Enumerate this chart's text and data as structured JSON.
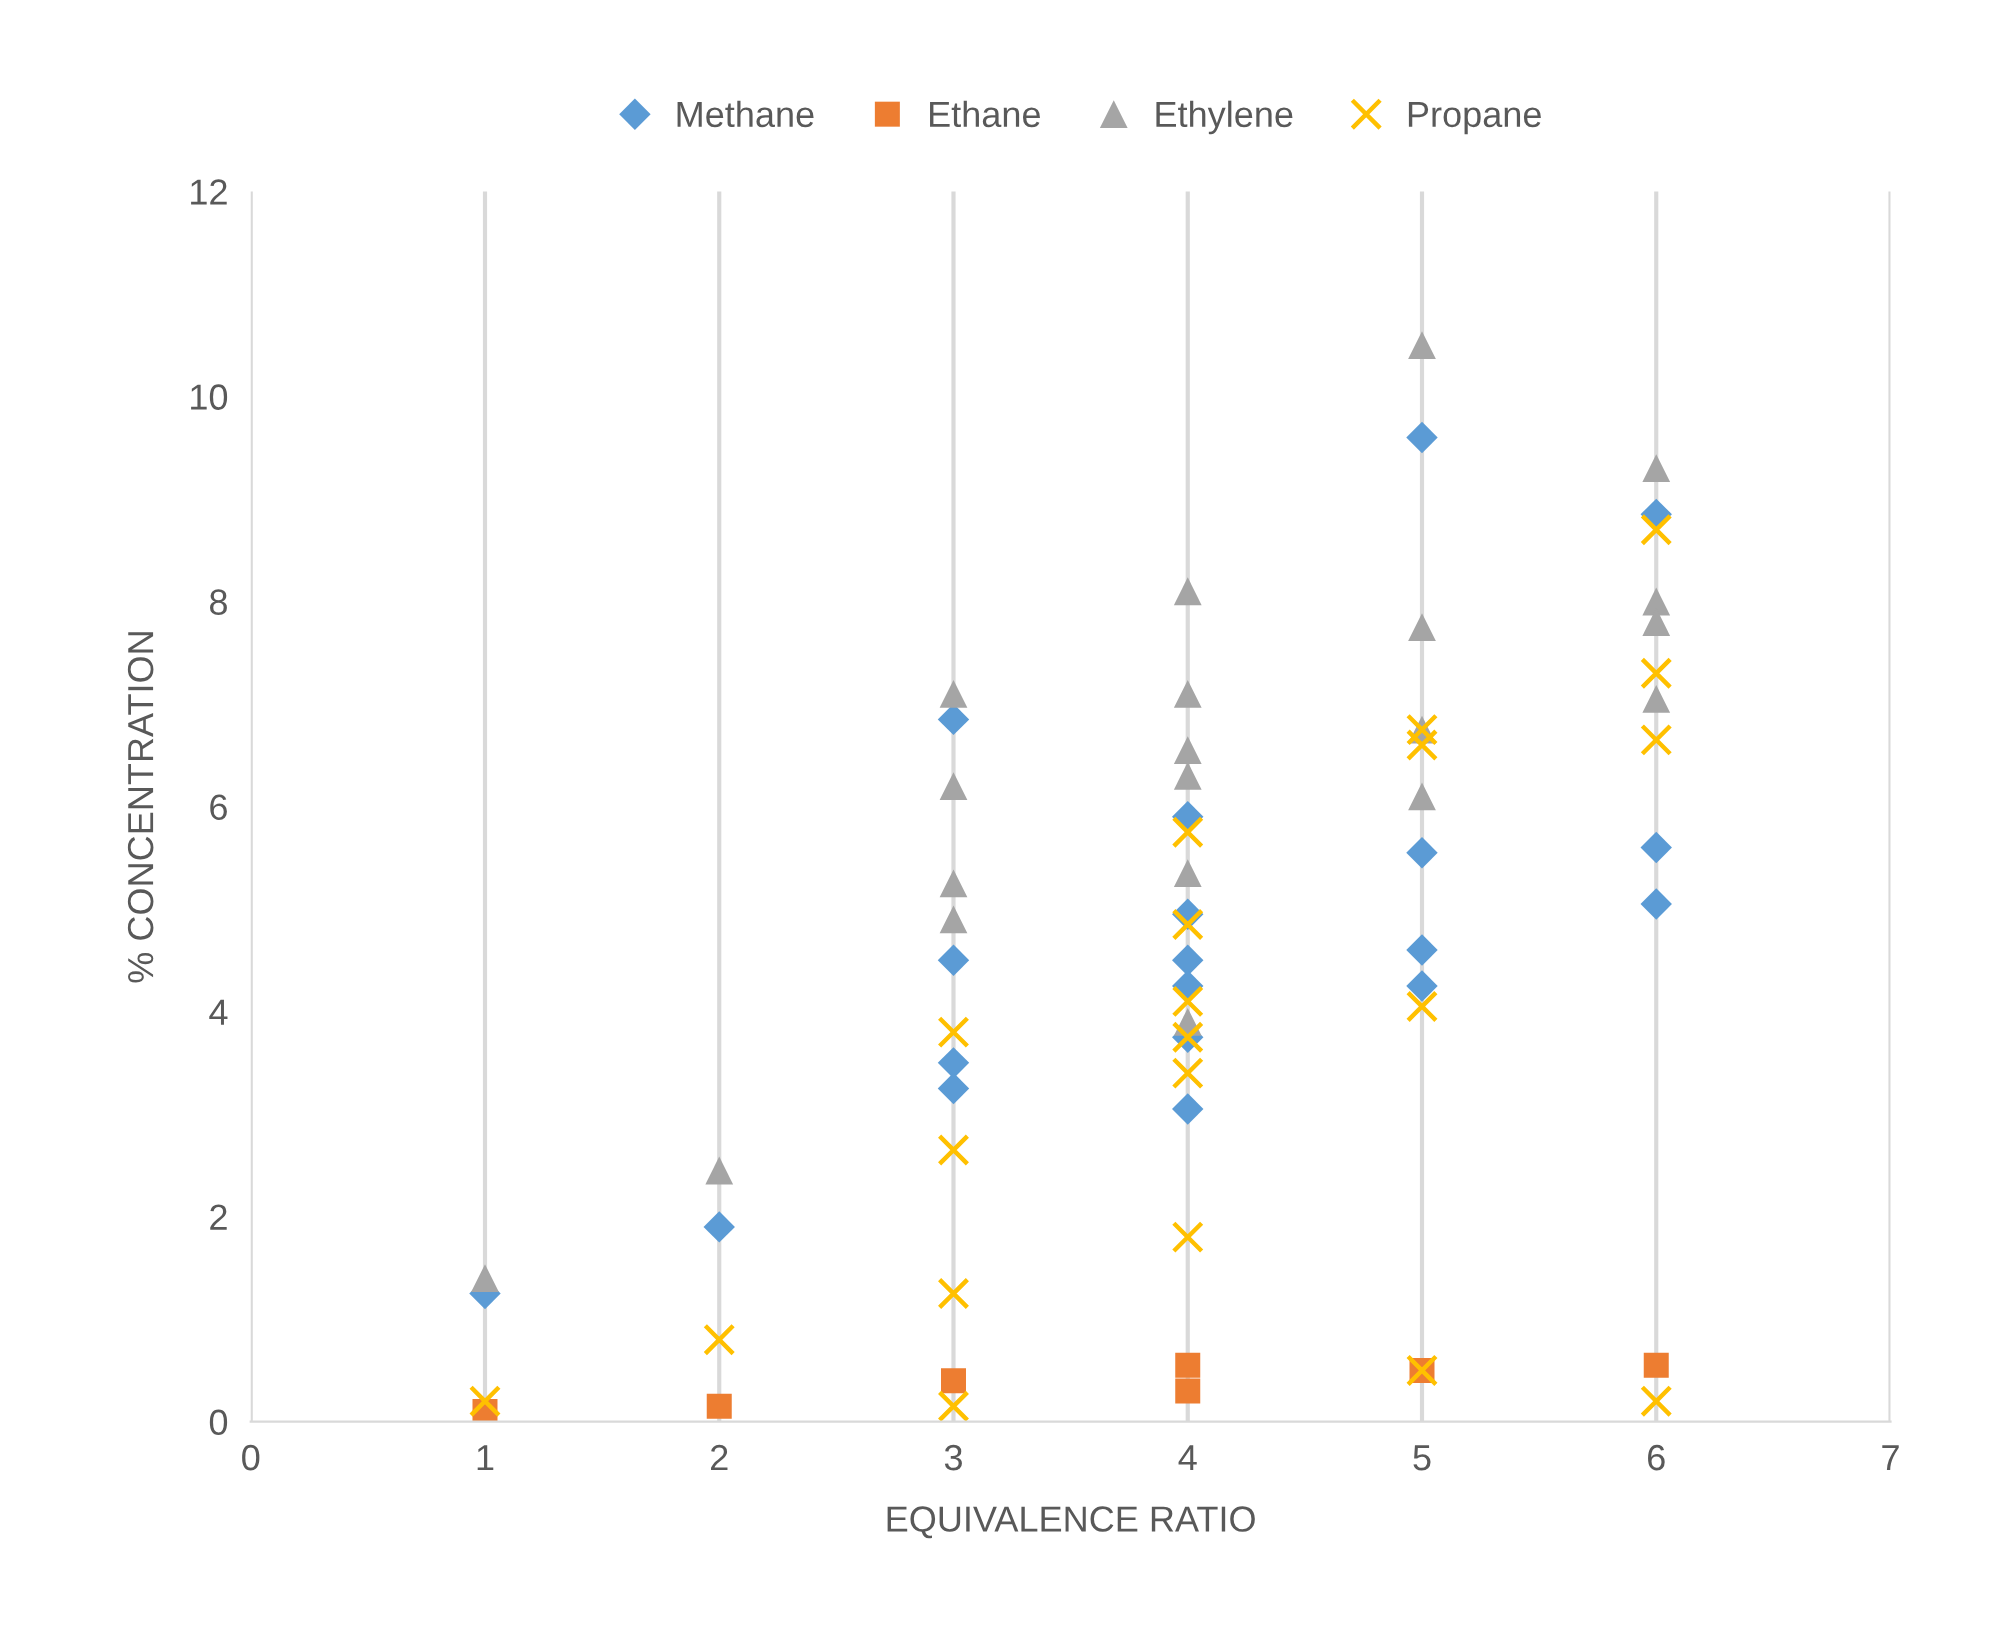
{
  "chart_data": {
    "type": "scatter",
    "xlabel": "EQUIVALENCE RATIO",
    "ylabel": "% CONCENTRATION",
    "xlim": [
      0,
      7
    ],
    "xticks": [
      0,
      1,
      2,
      3,
      4,
      5,
      6,
      7
    ],
    "ylim": [
      0,
      12
    ],
    "yticks": [
      0,
      2,
      4,
      6,
      8,
      10,
      12
    ],
    "grid": "x",
    "legend": "top",
    "series": [
      {
        "name": "Methane",
        "color": "#5b9bd5",
        "marker": "diamond",
        "x": [
          1,
          2,
          3,
          3,
          3,
          3,
          4,
          4,
          4,
          4,
          4,
          4,
          5,
          5,
          5,
          5,
          6,
          6,
          6
        ],
        "values": [
          1.25,
          1.9,
          6.85,
          4.5,
          3.5,
          3.25,
          5.9,
          4.95,
          4.5,
          4.25,
          3.75,
          3.05,
          9.6,
          5.55,
          4.6,
          4.25,
          8.85,
          5.6,
          5.05
        ]
      },
      {
        "name": "Ethane",
        "color": "#ed7d31",
        "marker": "square",
        "x": [
          1,
          2,
          3,
          4,
          4,
          5,
          6
        ],
        "values": [
          0.1,
          0.15,
          0.4,
          0.3,
          0.55,
          0.5,
          0.55
        ]
      },
      {
        "name": "Ethylene",
        "color": "#a5a5a5",
        "marker": "triangle",
        "x": [
          1,
          2,
          3,
          3,
          3,
          3,
          4,
          4,
          4,
          4,
          4,
          4,
          5,
          5,
          5,
          5,
          6,
          6,
          6,
          6
        ],
        "values": [
          1.4,
          2.45,
          7.1,
          6.2,
          5.25,
          4.9,
          8.1,
          7.1,
          6.55,
          6.3,
          5.35,
          3.9,
          10.5,
          7.75,
          6.75,
          6.1,
          9.3,
          8.0,
          7.8,
          7.05
        ]
      },
      {
        "name": "Propane",
        "color": "#ffc000",
        "marker": "cross",
        "x": [
          1,
          2,
          3,
          3,
          3,
          3,
          4,
          4,
          4,
          4,
          4,
          4,
          5,
          5,
          5,
          5,
          6,
          6,
          6,
          6
        ],
        "values": [
          0.2,
          0.8,
          3.8,
          2.65,
          1.25,
          0.15,
          5.75,
          4.85,
          4.1,
          3.75,
          3.4,
          1.8,
          6.75,
          6.6,
          4.05,
          0.5,
          8.7,
          7.3,
          6.65,
          0.2
        ]
      }
    ]
  }
}
